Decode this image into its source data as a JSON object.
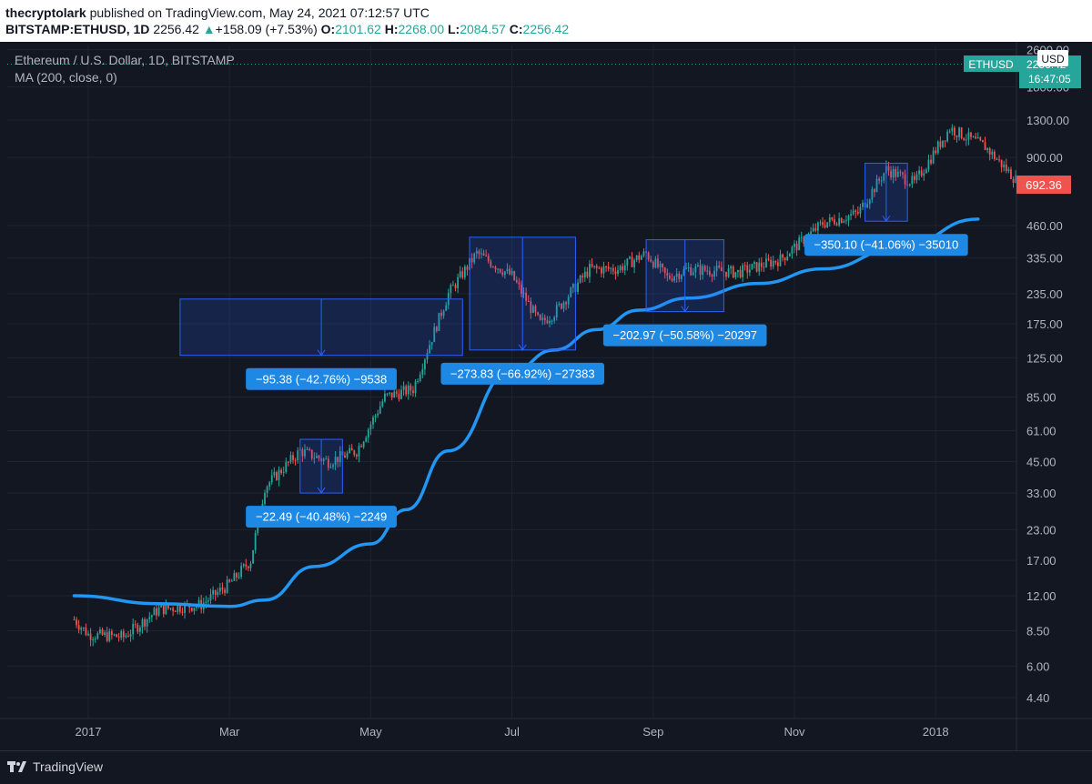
{
  "header": {
    "author": "thecryptolark",
    "published": "published on TradingView.com, May 24, 2021 07:12:57 UTC",
    "symbol_line": "BITSTAMP:ETHUSD, 1D",
    "last": "2256.42",
    "change": "+158.09 (+7.53%)",
    "o_label": "O:",
    "o": "2101.62",
    "h_label": "H:",
    "h": "2268.00",
    "l_label": "L:",
    "l": "2084.57",
    "c_label": "C:",
    "c": "2256.42"
  },
  "legend": {
    "symbol": "Ethereum / U.S. Dollar, 1D, BITSTAMP",
    "ma": "MA (200, close, 0)"
  },
  "price_tags": {
    "currency": "USD",
    "ticker": "ETHUSD",
    "ticker_price": "2256.42",
    "countdown": "16:47:05",
    "current": "692.36"
  },
  "footer": {
    "brand": "TradingView"
  },
  "colors": {
    "up": "#26a69a",
    "down": "#ef5350",
    "ma": "#2196f3",
    "box": "#2962ff",
    "label": "#1e88e5",
    "bg": "#131722"
  },
  "chart_data": {
    "type": "candlestick",
    "scale": "log",
    "y_ticks": [
      "2600.00",
      "1800.00",
      "1300.00",
      "900.00",
      "692.36",
      "460.00",
      "335.00",
      "235.00",
      "175.00",
      "125.00",
      "85.00",
      "61.00",
      "45.00",
      "33.00",
      "23.00",
      "17.00",
      "12.00",
      "8.50",
      "6.00",
      "4.40"
    ],
    "x_ticks": [
      "2017",
      "Mar",
      "May",
      "Jul",
      "Sep",
      "Nov",
      "2018"
    ],
    "close_path": [
      [
        -0.2,
        9.5
      ],
      [
        0.0,
        8.2
      ],
      [
        0.5,
        8.0
      ],
      [
        1.0,
        10.5
      ],
      [
        1.6,
        11.0
      ],
      [
        2.0,
        13.5
      ],
      [
        2.3,
        17
      ],
      [
        2.5,
        35
      ],
      [
        3.0,
        50
      ],
      [
        3.4,
        45
      ],
      [
        3.8,
        50
      ],
      [
        4.2,
        85
      ],
      [
        4.6,
        92
      ],
      [
        4.8,
        135
      ],
      [
        5.1,
        235
      ],
      [
        5.5,
        350
      ],
      [
        6.0,
        280
      ],
      [
        6.4,
        175
      ],
      [
        6.6,
        195
      ],
      [
        7.1,
        300
      ],
      [
        7.5,
        300
      ],
      [
        7.9,
        350
      ],
      [
        8.2,
        275
      ],
      [
        8.5,
        300
      ],
      [
        9.2,
        290
      ],
      [
        9.8,
        330
      ],
      [
        10.4,
        470
      ],
      [
        10.9,
        520
      ],
      [
        11.3,
        800
      ],
      [
        11.7,
        700
      ],
      [
        12.2,
        1200
      ],
      [
        12.7,
        1000
      ],
      [
        13.2,
        690
      ]
    ],
    "ma200_path": [
      [
        -0.2,
        12.0
      ],
      [
        1.0,
        11.1
      ],
      [
        2.0,
        10.8
      ],
      [
        2.5,
        11.5
      ],
      [
        3.2,
        16
      ],
      [
        4.0,
        20
      ],
      [
        4.5,
        28
      ],
      [
        5.1,
        50
      ],
      [
        6.0,
        110
      ],
      [
        6.6,
        135
      ],
      [
        7.2,
        165
      ],
      [
        7.8,
        200
      ],
      [
        8.5,
        225
      ],
      [
        9.5,
        260
      ],
      [
        10.4,
        300
      ],
      [
        11.5,
        370
      ],
      [
        12.6,
        490
      ]
    ],
    "measurements": [
      {
        "label": "−95.38 (−42.76%) −9538",
        "x_start": 1.3,
        "x_end": 5.3,
        "top": 223,
        "bottom": 128
      },
      {
        "label": "−22.49 (−40.48%) −2249",
        "x_start": 3.0,
        "x_end": 3.6,
        "top": 56,
        "bottom": 33
      },
      {
        "label": "−273.83 (−66.92%) −27383",
        "x_start": 5.4,
        "x_end": 6.9,
        "top": 410,
        "bottom": 135
      },
      {
        "label": "−202.97 (−50.58%) −20297",
        "x_start": 7.9,
        "x_end": 9.0,
        "top": 400,
        "bottom": 197
      },
      {
        "label": "−350.10 (−41.06%) −35010",
        "x_start": 11.0,
        "x_end": 11.6,
        "top": 850,
        "bottom": 480
      }
    ],
    "last_price_line": 2256.42
  }
}
